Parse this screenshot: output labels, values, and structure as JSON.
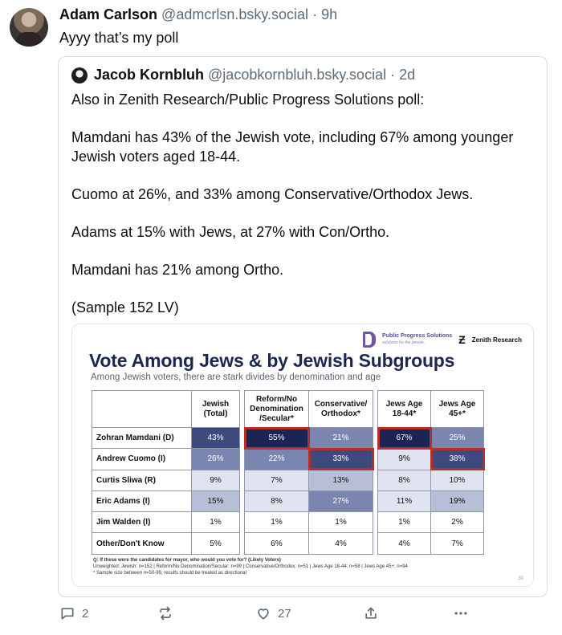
{
  "post": {
    "author_name": "Adam Carlson",
    "author_handle": "@admcrlsn.bsky.social",
    "separator": "·",
    "time": "9h",
    "text": "Ayyy that’s my poll"
  },
  "quote": {
    "author_name": "Jacob Kornbluh",
    "author_handle": "@jacobkornbluh.bsky.social",
    "separator": "·",
    "time": "2d",
    "paragraphs": [
      "Also in Zenith Research/Public Progress Solutions poll:",
      "Mamdani has 43% of the Jewish vote, including 67% among younger Jewish voters aged 18-44.",
      "Cuomo at 26%, and 33% among Conservative/Orthodox Jews.",
      "Adams at 15% with Jews, at 27% with Con/Ortho.",
      "Mamdani has 21% among Ortho.",
      "(Sample 152 LV)"
    ]
  },
  "poll_image": {
    "logo_pps": "Public Progress Solutions",
    "logo_pps_tag": "solutions for the people.",
    "logo_zenith": "Zenith Research",
    "title": "Vote Among Jews & by Jewish Subgroups",
    "subtitle": "Among Jewish voters, there are stark divides by denomination and age",
    "columns": [
      "Jewish (Total)",
      "Reform/No Denomination /Secular*",
      "Conservative/ Orthodox*",
      "Jews Age 18-44*",
      "Jews Age 45+*"
    ],
    "rows": [
      {
        "label": "Zohran Mamdani (D)",
        "values": [
          "43%",
          "55%",
          "21%",
          "67%",
          "25%"
        ]
      },
      {
        "label": "Andrew Cuomo (I)",
        "values": [
          "26%",
          "22%",
          "33%",
          "9%",
          "38%"
        ]
      },
      {
        "label": "Curtis Sliwa (R)",
        "values": [
          "9%",
          "7%",
          "13%",
          "8%",
          "10%"
        ]
      },
      {
        "label": "Eric Adams (I)",
        "values": [
          "15%",
          "8%",
          "27%",
          "11%",
          "19%"
        ]
      },
      {
        "label": "Jim Walden (I)",
        "values": [
          "1%",
          "1%",
          "1%",
          "1%",
          "2%"
        ]
      },
      {
        "label": "Other/Don't Know",
        "values": [
          "5%",
          "6%",
          "4%",
          "4%",
          "7%"
        ]
      }
    ],
    "note_question": "Q: If these were the candidates for mayor, who would you vote for? (Likely Voters)",
    "note_n": "Unweighted: Jewish: n=152 | Reform/No Denomination/Secular: n=99 | Conservative/Orthodox: n=51 | Jews Age 18-44: n=58 | Jews Age 45+: n=94",
    "note_sample": "* Sample size between n=50-99, results should be treated as directional",
    "page_number": "30",
    "highlight_color": "#b4302a"
  },
  "actions": {
    "reply_count": "2",
    "repost_count": "",
    "like_count": "27"
  }
}
